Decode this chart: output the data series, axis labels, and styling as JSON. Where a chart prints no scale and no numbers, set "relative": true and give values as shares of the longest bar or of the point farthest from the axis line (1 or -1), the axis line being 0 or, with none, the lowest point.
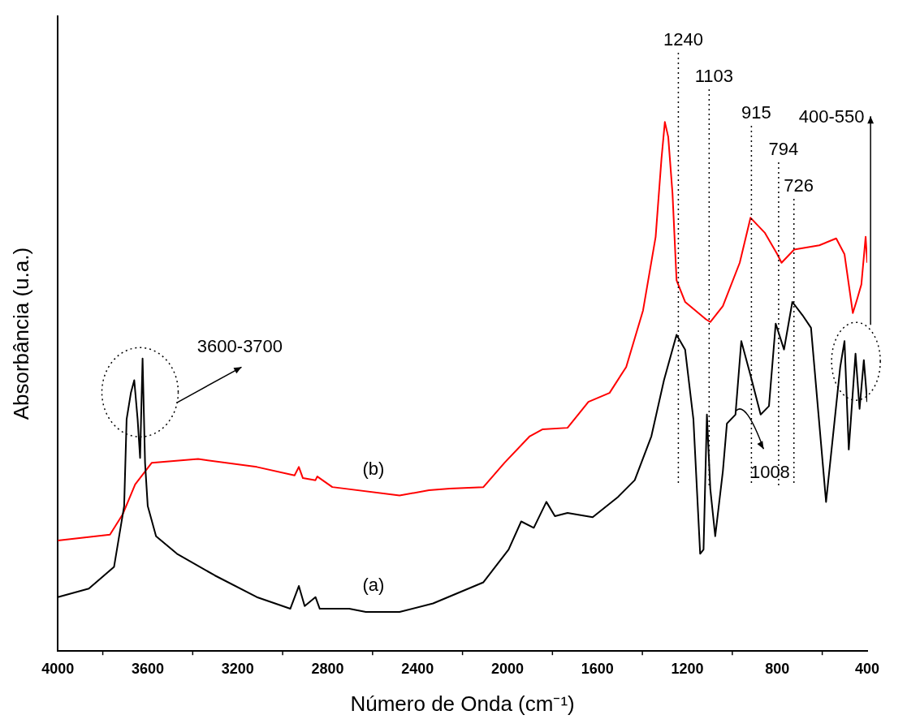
{
  "chart_data": {
    "type": "line",
    "relative": true,
    "xlabel": "Número de Onda (cm⁻¹)",
    "ylabel": "Absorbância (u.a.)",
    "xlim": [
      4000,
      400
    ],
    "xticks": [
      4000,
      3600,
      3200,
      2800,
      2400,
      2000,
      1600,
      1200,
      800,
      400
    ],
    "grid": false,
    "legend": false,
    "marker": "none",
    "line_style": "solid",
    "series": [
      {
        "name": "(a)",
        "color": "#000000",
        "x": [
          4000,
          3862,
          3750,
          3705,
          3694,
          3675,
          3660,
          3645,
          3634,
          3623,
          3612,
          3600,
          3563,
          3470,
          3302,
          3115,
          2966,
          2928,
          2902,
          2854,
          2835,
          2704,
          2630,
          2480,
          2331,
          2219,
          2107,
          1995,
          1939,
          1883,
          1827,
          1789,
          1733,
          1621,
          1509,
          1434,
          1360,
          1304,
          1248,
          1210,
          1173,
          1143,
          1128,
          1113,
          1098,
          1076,
          1042,
          1024,
          986,
          960,
          919,
          874,
          837,
          807,
          770,
          733,
          688,
          650,
          583,
          520,
          501,
          482,
          452,
          434,
          415,
          400
        ],
        "values": [
          0.102,
          0.118,
          0.159,
          0.274,
          0.438,
          0.488,
          0.512,
          0.438,
          0.365,
          0.553,
          0.356,
          0.274,
          0.217,
          0.184,
          0.143,
          0.102,
          0.08,
          0.123,
          0.085,
          0.102,
          0.08,
          0.08,
          0.074,
          0.074,
          0.09,
          0.11,
          0.13,
          0.192,
          0.245,
          0.233,
          0.282,
          0.255,
          0.261,
          0.253,
          0.291,
          0.323,
          0.406,
          0.512,
          0.598,
          0.57,
          0.438,
          0.184,
          0.192,
          0.447,
          0.307,
          0.217,
          0.34,
          0.43,
          0.447,
          0.586,
          0.521,
          0.447,
          0.463,
          0.619,
          0.57,
          0.66,
          0.635,
          0.611,
          0.282,
          0.537,
          0.586,
          0.381,
          0.562,
          0.458,
          0.55,
          0.471
        ]
      },
      {
        "name": "(b)",
        "color": "#ff0000",
        "x": [
          4000,
          3768,
          3712,
          3656,
          3582,
          3376,
          3115,
          2947,
          2928,
          2910,
          2854,
          2846,
          2779,
          2480,
          2349,
          2256,
          2107,
          2013,
          1901,
          1845,
          1733,
          1640,
          1546,
          1472,
          1397,
          1341,
          1315,
          1300,
          1285,
          1266,
          1248,
          1210,
          1117,
          1098,
          1042,
          967,
          919,
          856,
          800,
          781,
          725,
          613,
          538,
          501,
          464,
          445,
          426,
          407,
          400
        ],
        "values": [
          0.209,
          0.22,
          0.258,
          0.315,
          0.356,
          0.363,
          0.348,
          0.332,
          0.348,
          0.327,
          0.323,
          0.33,
          0.31,
          0.294,
          0.304,
          0.307,
          0.31,
          0.356,
          0.406,
          0.419,
          0.422,
          0.471,
          0.488,
          0.537,
          0.644,
          0.783,
          0.931,
          1,
          0.972,
          0.865,
          0.701,
          0.66,
          0.627,
          0.622,
          0.652,
          0.734,
          0.819,
          0.791,
          0.75,
          0.734,
          0.759,
          0.767,
          0.78,
          0.75,
          0.639,
          0.665,
          0.693,
          0.783,
          0.734
        ]
      }
    ],
    "ref_lines": [
      {
        "axis": "x",
        "value": 1240,
        "label": "1240",
        "color": "#000000",
        "line_style": "dotted"
      },
      {
        "axis": "x",
        "value": 1103,
        "label": "1103",
        "color": "#000000",
        "line_style": "dotted"
      },
      {
        "axis": "x",
        "value": 915,
        "label": "915",
        "color": "#000000",
        "line_style": "dotted"
      },
      {
        "axis": "x",
        "value": 794,
        "label": "794",
        "color": "#000000",
        "line_style": "dotted"
      },
      {
        "axis": "x",
        "value": 726,
        "label": "726",
        "color": "#000000",
        "line_style": "dotted"
      }
    ],
    "annotations": [
      "3600-3700",
      "400-550",
      "1008"
    ]
  }
}
